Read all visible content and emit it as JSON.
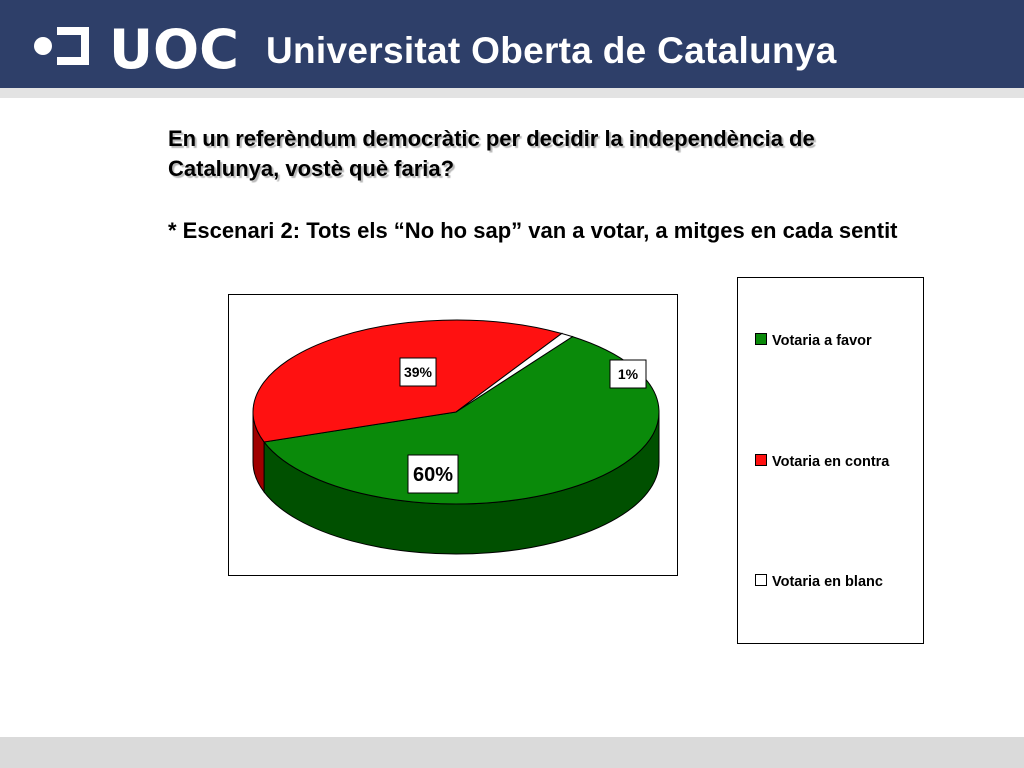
{
  "header": {
    "logo_text": "UOC",
    "brand_name": "Universitat Oberta de Catalunya"
  },
  "question": "En un referèndum democràtic per decidir la independència de Catalunya, vostè què faria?",
  "scenario": "* Escenari 2: Tots els “No ho sap” van a votar, a mitges en cada sentit",
  "chart_data": {
    "type": "pie",
    "style": "3d",
    "categories": [
      "Votaria a favor",
      "Votaria en contra",
      "Votaria en blanc"
    ],
    "values": [
      60,
      39,
      1
    ],
    "labels": [
      "60%",
      "39%",
      "1%"
    ],
    "colors": [
      "#0a8a0a",
      "#ff1111",
      "#ffffff"
    ],
    "legend": "right"
  }
}
